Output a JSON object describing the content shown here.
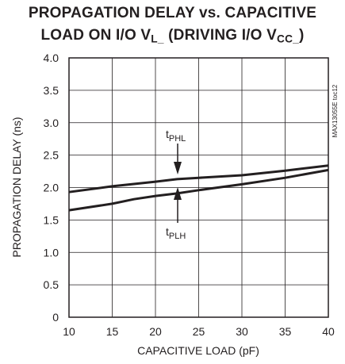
{
  "chart_data": {
    "type": "line",
    "title_line1": "PROPAGATION DELAY vs. CAPACITIVE",
    "title_line2_pre": "LOAD ON I/O V",
    "title_line2_sub1": "L_",
    "title_line2_mid": " (DRIVING I/O V",
    "title_line2_sub2": "CC_",
    "title_line2_post": ")",
    "xlabel": "CAPACITIVE LOAD (pF)",
    "ylabel": "PROPAGATION DELAY (ns)",
    "xlim": [
      10,
      40
    ],
    "ylim": [
      0,
      4.0
    ],
    "xticks": [
      "10",
      "15",
      "20",
      "25",
      "30",
      "35",
      "40"
    ],
    "yticks": [
      "0",
      "0.5",
      "1.0",
      "1.5",
      "2.0",
      "2.5",
      "3.0",
      "3.5",
      "4.0"
    ],
    "grid": true,
    "side_note": "MAX13055E toc12",
    "series": [
      {
        "name_main": "t",
        "name_sub": "PHL",
        "x": [
          10,
          15,
          20,
          22.5,
          25,
          30,
          35,
          40
        ],
        "y": [
          1.93,
          2.02,
          2.09,
          2.13,
          2.15,
          2.19,
          2.26,
          2.34
        ]
      },
      {
        "name_main": "t",
        "name_sub": "PLH",
        "x": [
          10,
          15,
          17.5,
          20,
          22.5,
          25,
          30,
          35,
          40
        ],
        "y": [
          1.65,
          1.75,
          1.82,
          1.87,
          1.91,
          1.96,
          2.05,
          2.15,
          2.27
        ]
      }
    ]
  }
}
